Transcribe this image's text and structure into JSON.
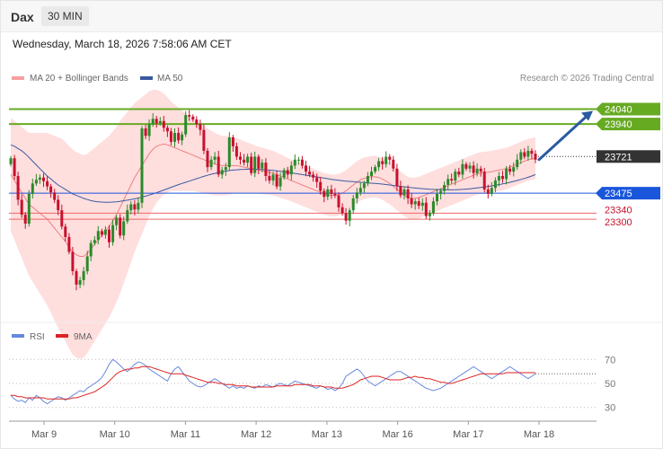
{
  "header": {
    "symbol": "Dax",
    "interval": "30 MIN",
    "datetime": "Wednesday, March 18, 2026 7:58:06 AM CET"
  },
  "legend": {
    "ma20_label": "MA 20 + Bollinger Bands",
    "ma50_label": "MA 50",
    "credit": "Research © 2026 Trading Central",
    "rsi_label": "RSI",
    "rsi_ma_label": "9MA"
  },
  "colors": {
    "up": "#2a8a2a",
    "down": "#c8102e",
    "bollinger_fill": "#ffdede",
    "ma20": "#f08080",
    "ma50": "#3a5aa0",
    "resistance": "#66aa22",
    "support": "#1a56db",
    "stop": "#ee6666",
    "last": "#333333",
    "arrow": "#2a5aa0",
    "rsi": "#6688dd",
    "rsi_ma": "#dd2222"
  },
  "chart_data": [
    {
      "type": "candlestick",
      "x_axis_labels": [
        "Mar 9",
        "Mar 10",
        "Mar 11",
        "Mar 12",
        "Mar 13",
        "Mar 16",
        "Mar 17",
        "Mar 18"
      ],
      "y_range": [
        22600,
        24200
      ],
      "levels": [
        {
          "label": "24040",
          "value": 24040,
          "kind": "resistance"
        },
        {
          "label": "23940",
          "value": 23940,
          "kind": "resistance"
        },
        {
          "label": "23721",
          "value": 23721,
          "kind": "last"
        },
        {
          "label": "23475",
          "value": 23475,
          "kind": "support"
        },
        {
          "label": "23340",
          "value": 23340,
          "kind": "stop"
        },
        {
          "label": "23300",
          "value": 23300,
          "kind": "stop"
        }
      ],
      "projection_target": 24040,
      "close": [
        23710,
        23590,
        23430,
        23330,
        23270,
        23470,
        23540,
        23565,
        23580,
        23555,
        23520,
        23480,
        23430,
        23360,
        23250,
        23180,
        23080,
        22950,
        22860,
        22890,
        22950,
        23050,
        23140,
        23160,
        23220,
        23195,
        23230,
        23145,
        23260,
        23310,
        23190,
        23285,
        23360,
        23400,
        23365,
        23410,
        23910,
        23860,
        23940,
        23975,
        23945,
        23960,
        23915,
        23890,
        23820,
        23880,
        23830,
        23870,
        24000,
        23990,
        23970,
        23940,
        23900,
        23760,
        23650,
        23700,
        23720,
        23600,
        23630,
        23650,
        23850,
        23790,
        23720,
        23700,
        23680,
        23720,
        23610,
        23720,
        23640,
        23680,
        23590,
        23560,
        23600,
        23520,
        23580,
        23630,
        23600,
        23660,
        23700,
        23700,
        23660,
        23620,
        23600,
        23580,
        23550,
        23490,
        23450,
        23500,
        23470,
        23460,
        23380,
        23340,
        23290,
        23360,
        23440,
        23480,
        23510,
        23540,
        23590,
        23620,
        23650,
        23690,
        23670,
        23720,
        23700,
        23640,
        23520,
        23460,
        23500,
        23440,
        23400,
        23420,
        23390,
        23410,
        23320,
        23340,
        23420,
        23470,
        23490,
        23530,
        23570,
        23560,
        23620,
        23600,
        23670,
        23640,
        23660,
        23610,
        23640,
        23620,
        23500,
        23470,
        23510,
        23560,
        23590,
        23570,
        23640,
        23620,
        23650,
        23700,
        23750,
        23720,
        23760,
        23740,
        23700
      ],
      "ma20": [
        23600,
        23560,
        23520,
        23480,
        23440,
        23400,
        23380,
        23360,
        23340,
        23320,
        23300,
        23270,
        23240,
        23210,
        23180,
        23150,
        23110,
        23080,
        23060,
        23050,
        23050,
        23070,
        23100,
        23130,
        23160,
        23190,
        23220,
        23250,
        23290,
        23330,
        23380,
        23430,
        23480,
        23530,
        23580,
        23620,
        23660,
        23700,
        23740,
        23770,
        23790,
        23800,
        23805,
        23800,
        23790,
        23780,
        23770,
        23760,
        23750,
        23740,
        23730,
        23720,
        23710,
        23700,
        23690,
        23680,
        23670,
        23665,
        23660,
        23660,
        23660,
        23660,
        23660,
        23655,
        23650,
        23645,
        23640,
        23635,
        23630,
        23625,
        23620,
        23615,
        23610,
        23600,
        23590,
        23580,
        23570,
        23560,
        23550,
        23540,
        23530,
        23520,
        23510,
        23500,
        23490,
        23480,
        23470,
        23465,
        23460,
        23460,
        23465,
        23475,
        23490,
        23510,
        23530,
        23550,
        23565,
        23575,
        23580,
        23585,
        23585,
        23580,
        23570,
        23555,
        23540,
        23520,
        23500,
        23480,
        23460,
        23445,
        23440,
        23440,
        23445,
        23455,
        23465,
        23475,
        23485,
        23495,
        23505,
        23515,
        23525,
        23535,
        23545,
        23555,
        23565,
        23575,
        23585,
        23595,
        23605,
        23610,
        23615,
        23615,
        23620,
        23625,
        23630,
        23635,
        23640,
        23650,
        23660,
        23670,
        23680,
        23690,
        23700,
        23705,
        23710
      ],
      "ma50": [
        23800,
        23790,
        23775,
        23760,
        23740,
        23715,
        23690,
        23665,
        23640,
        23615,
        23590,
        23570,
        23550,
        23530,
        23515,
        23500,
        23485,
        23470,
        23460,
        23450,
        23440,
        23432,
        23425,
        23420,
        23417,
        23415,
        23414,
        23414,
        23415,
        23417,
        23420,
        23424,
        23428,
        23432,
        23437,
        23442,
        23448,
        23455,
        23462,
        23470,
        23478,
        23487,
        23496,
        23505,
        23514,
        23523,
        23532,
        23540,
        23548,
        23556,
        23564,
        23572,
        23580,
        23588,
        23595,
        23602,
        23608,
        23614,
        23619,
        23623,
        23627,
        23630,
        23632,
        23634,
        23635,
        23636,
        23636,
        23636,
        23635,
        23634,
        23632,
        23630,
        23628,
        23625,
        23622,
        23619,
        23616,
        23612,
        23608,
        23604,
        23600,
        23596,
        23592,
        23588,
        23584,
        23580,
        23576,
        23572,
        23568,
        23565,
        23562,
        23559,
        23556,
        23554,
        23552,
        23550,
        23548,
        23546,
        23544,
        23542,
        23540,
        23538,
        23536,
        23533,
        23530,
        23527,
        23524,
        23521,
        23518,
        23515,
        23512,
        23509,
        23507,
        23505,
        23503,
        23501,
        23500,
        23499,
        23498,
        23497,
        23497,
        23497,
        23498,
        23499,
        23500,
        23502,
        23504,
        23507,
        23510,
        23513,
        23516,
        23520,
        23524,
        23528,
        23532,
        23537,
        23542,
        23548,
        23554,
        23560,
        23567,
        23574,
        23582,
        23590,
        23600
      ],
      "bollinger_width": [
        380,
        400,
        420,
        440,
        460,
        480,
        500,
        520,
        540,
        560,
        580,
        600,
        620,
        640,
        660,
        670,
        680,
        690,
        690,
        690,
        680,
        670,
        660,
        650,
        640,
        630,
        620,
        610,
        600,
        590,
        580,
        560,
        540,
        520,
        500,
        480,
        460,
        440,
        420,
        400,
        380,
        360,
        340,
        320,
        300,
        290,
        280,
        270,
        260,
        250,
        240,
        235,
        230,
        225,
        220,
        215,
        210,
        205,
        200,
        200,
        195,
        190,
        185,
        180,
        175,
        170,
        165,
        160,
        158,
        156,
        154,
        152,
        150,
        148,
        146,
        144,
        142,
        140,
        140,
        140,
        140,
        140,
        140,
        140,
        140,
        140,
        140,
        140,
        140,
        140,
        140,
        140,
        140,
        140,
        140,
        140,
        140,
        140,
        140,
        140,
        140,
        140,
        140,
        140,
        140,
        140,
        140,
        140,
        140,
        140,
        140,
        140,
        140,
        140,
        140,
        140,
        140,
        140,
        140,
        140,
        140,
        140,
        140,
        140,
        140,
        140,
        140,
        140,
        140,
        140,
        140,
        140,
        140,
        140,
        140,
        140,
        140,
        140,
        140,
        140,
        140,
        140,
        140,
        140,
        140
      ]
    },
    {
      "type": "line",
      "name": "RSI",
      "y_range": [
        20,
        80
      ],
      "y_ticks": [
        "70",
        "50",
        "30"
      ],
      "rsi": [
        40,
        37,
        35,
        36,
        34,
        38,
        36,
        40,
        38,
        35,
        33,
        35,
        37,
        39,
        38,
        36,
        38,
        40,
        42,
        44,
        43,
        46,
        48,
        50,
        52,
        55,
        60,
        66,
        70,
        68,
        65,
        62,
        60,
        63,
        66,
        68,
        67,
        65,
        62,
        60,
        58,
        56,
        54,
        52,
        58,
        62,
        64,
        60,
        56,
        52,
        50,
        48,
        47,
        48,
        50,
        52,
        54,
        52,
        50,
        48,
        46,
        48,
        46,
        47,
        46,
        48,
        47,
        46,
        48,
        47,
        49,
        48,
        47,
        49,
        50,
        49,
        48,
        50,
        52,
        51,
        50,
        49,
        48,
        47,
        46,
        48,
        47,
        45,
        46,
        44,
        46,
        50,
        56,
        58,
        60,
        62,
        60,
        56,
        52,
        50,
        48,
        50,
        52,
        54,
        56,
        58,
        60,
        60,
        58,
        56,
        54,
        52,
        50,
        48,
        46,
        45,
        44,
        45,
        46,
        48,
        50,
        52,
        54,
        56,
        58,
        60,
        62,
        64,
        62,
        60,
        58,
        56,
        54,
        56,
        58,
        60,
        62,
        64,
        62,
        60,
        58,
        56,
        54,
        56,
        58
      ],
      "rsi_ma": [
        40,
        40,
        39,
        39,
        38,
        38,
        38,
        38,
        38,
        38,
        37,
        37,
        37,
        37,
        37,
        37,
        37,
        38,
        38,
        39,
        40,
        41,
        42,
        43,
        45,
        47,
        49,
        52,
        55,
        58,
        60,
        61,
        62,
        62,
        63,
        63,
        64,
        64,
        64,
        63,
        62,
        61,
        60,
        59,
        58,
        58,
        58,
        58,
        57,
        56,
        55,
        54,
        53,
        52,
        51,
        51,
        51,
        50,
        50,
        49,
        49,
        49,
        48,
        48,
        48,
        48,
        47,
        47,
        47,
        47,
        47,
        47,
        47,
        48,
        48,
        48,
        48,
        48,
        49,
        49,
        49,
        49,
        49,
        48,
        48,
        48,
        47,
        47,
        47,
        46,
        46,
        46,
        47,
        48,
        49,
        51,
        53,
        54,
        55,
        56,
        56,
        56,
        55,
        54,
        53,
        53,
        53,
        53,
        54,
        55,
        55,
        56,
        55,
        55,
        54,
        54,
        53,
        52,
        51,
        51,
        50,
        50,
        51,
        52,
        53,
        54,
        55,
        56,
        57,
        58,
        58,
        58,
        58,
        58,
        58,
        58,
        59,
        59,
        59,
        59,
        59,
        59,
        59,
        59,
        59
      ]
    }
  ]
}
